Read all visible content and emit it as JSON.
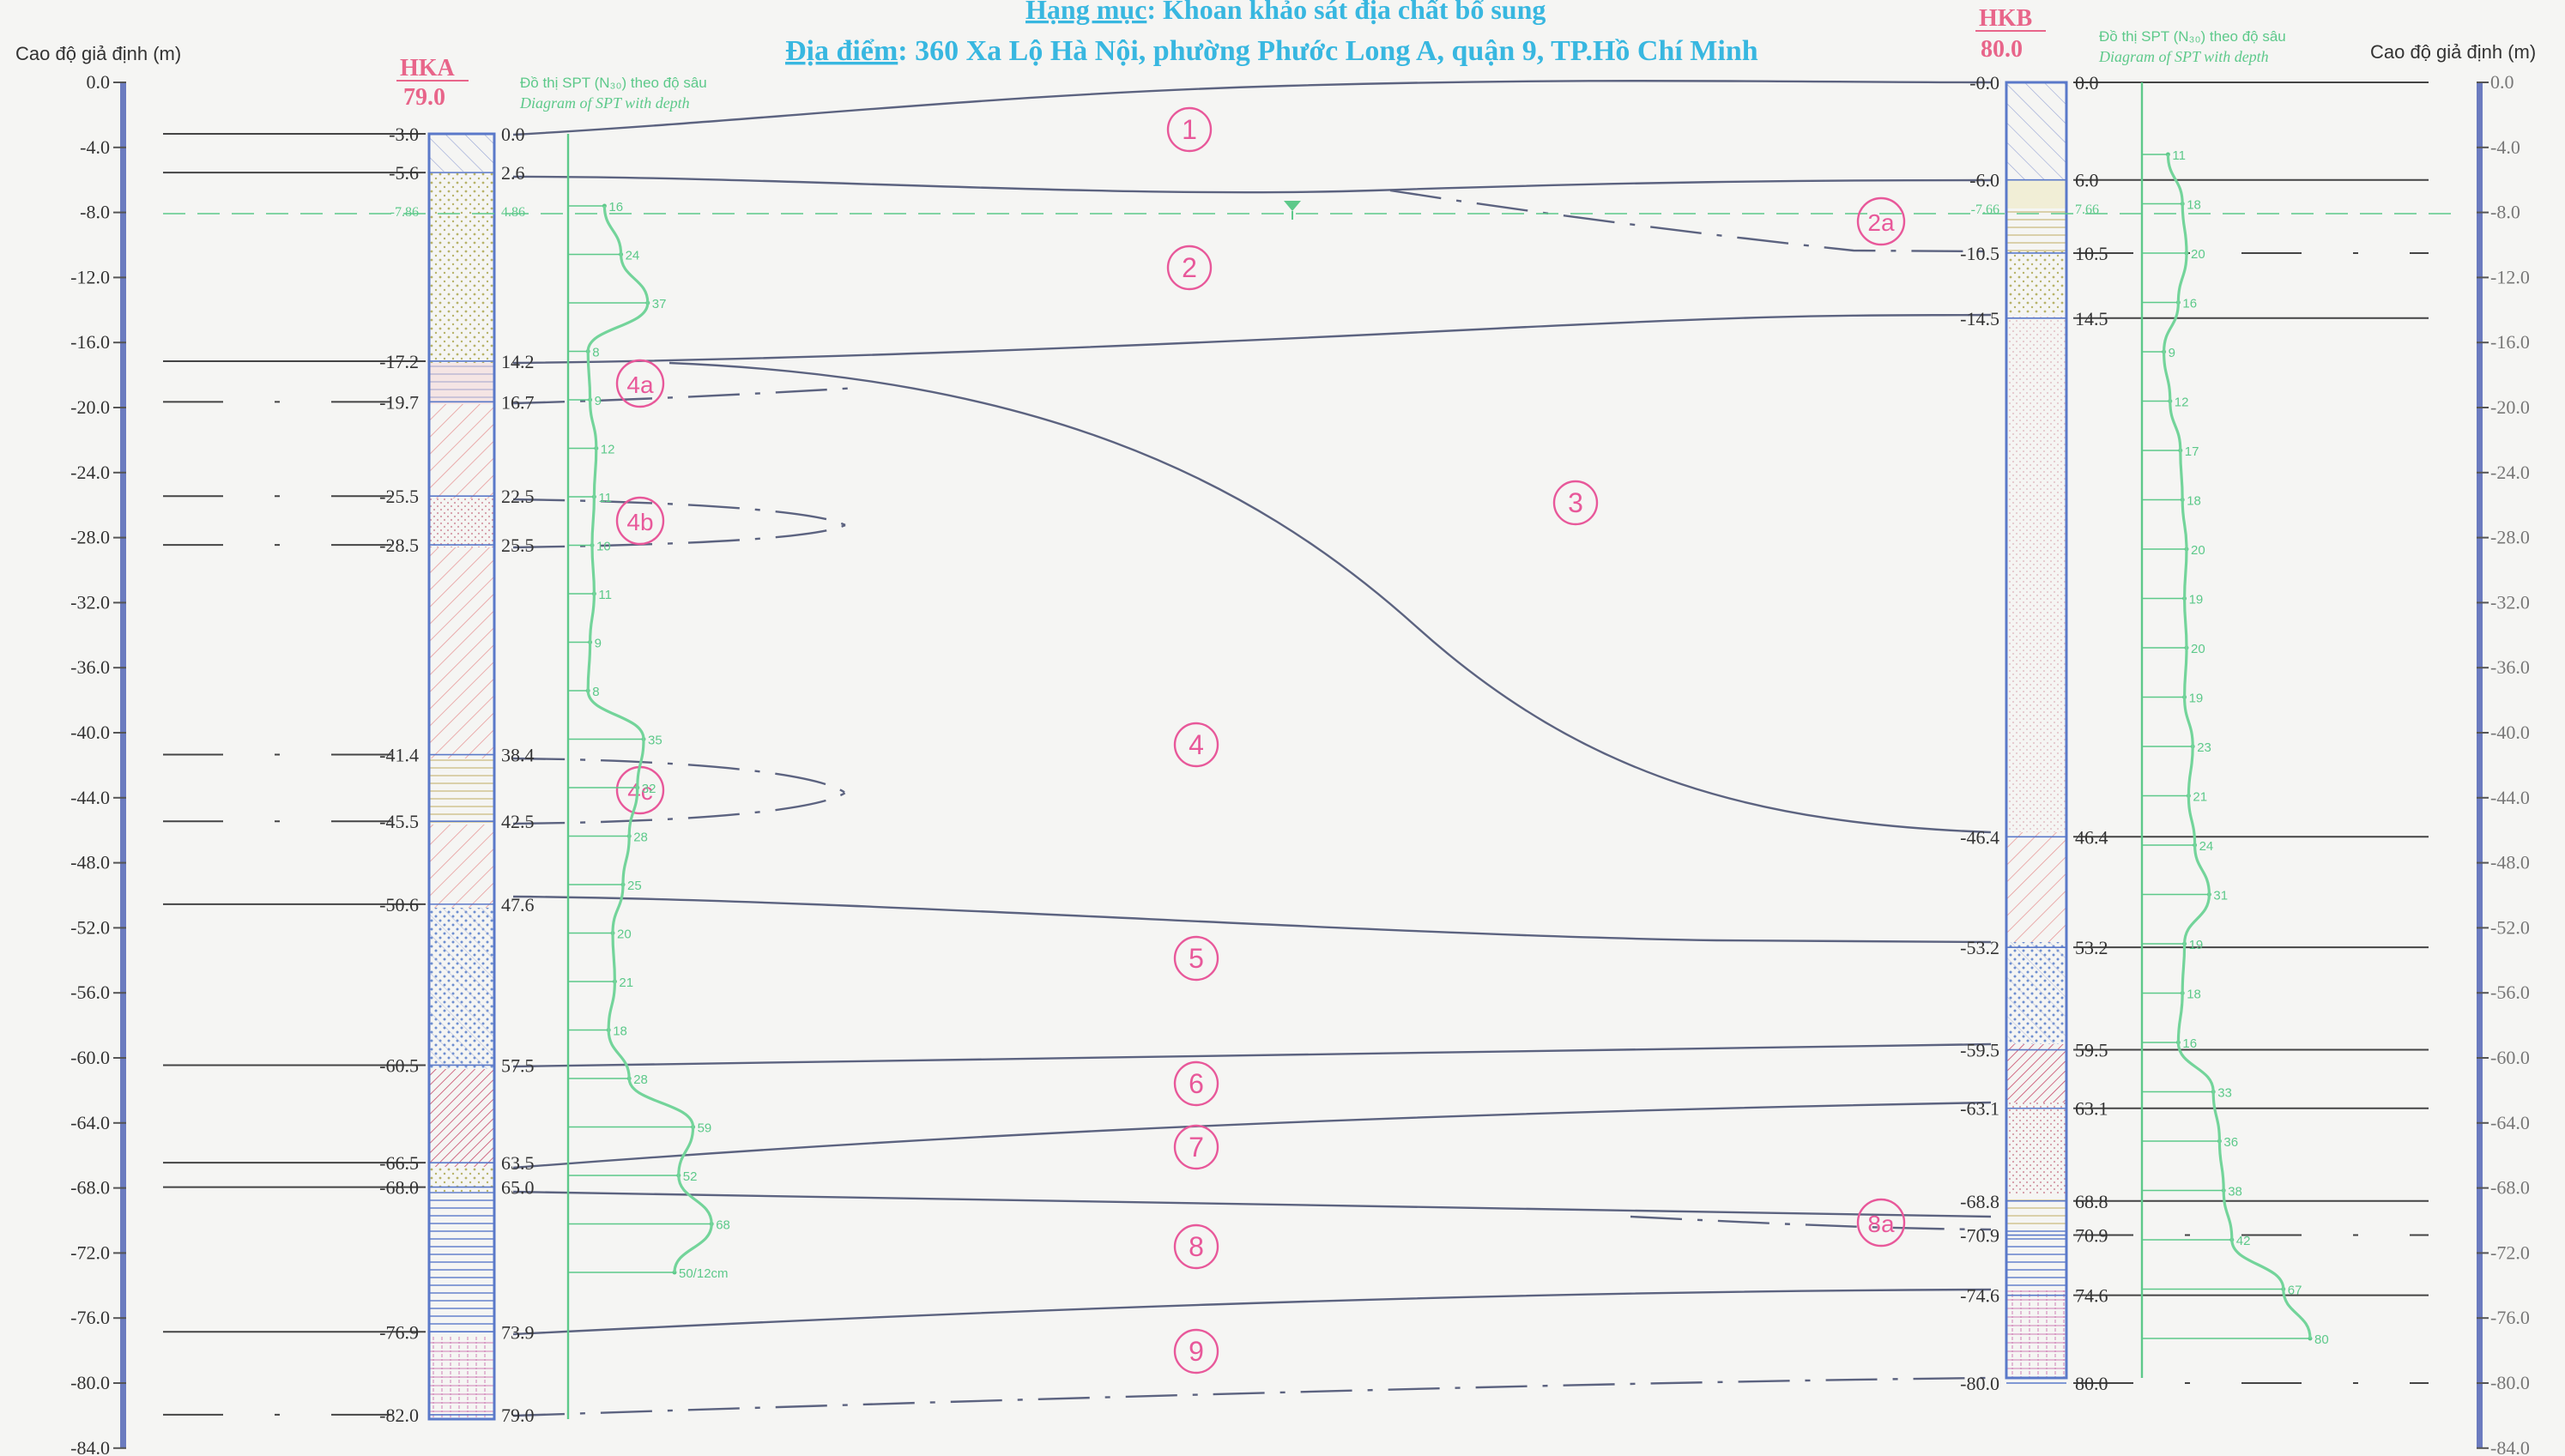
{
  "header": {
    "line1_label": "Hạng mục",
    "line1_value": ": Khoan khảo sát địa chất bổ sung",
    "line2_label": "Địa điểm",
    "line2_value": ": 360 Xa Lộ Hà Nội, phường Phước Long A, quận 9, TP.Hồ Chí Minh"
  },
  "axis": {
    "label_left": "Cao độ giả định (m)",
    "label_right": "Cao độ giả định (m)",
    "ticks": [
      "0.0",
      "-4.0",
      "-8.0",
      "-12.0",
      "-16.0",
      "-20.0",
      "-24.0",
      "-28.0",
      "-32.0",
      "-36.0",
      "-40.0",
      "-44.0",
      "-48.0",
      "-52.0",
      "-56.0",
      "-60.0",
      "-64.0",
      "-68.0",
      "-72.0",
      "-76.0",
      "-80.0",
      "-84.0"
    ]
  },
  "boreholes": {
    "left": {
      "name": "HKA",
      "ground": "79.0",
      "spt_title": "Đồ thị SPT (N₃₀) theo độ sâu",
      "spt_subtitle": "Diagram of SPT with depth",
      "layers": [
        {
          "elev": "-3.0",
          "depth": "0.0"
        },
        {
          "elev": "-5.6",
          "depth": "2.6"
        },
        {
          "elev": "-7.86",
          "depth": "4.86"
        },
        {
          "elev": "-17.2",
          "depth": "14.2"
        },
        {
          "elev": "-19.7",
          "depth": "16.7"
        },
        {
          "elev": "-25.5",
          "depth": "22.5"
        },
        {
          "elev": "-28.5",
          "depth": "25.5"
        },
        {
          "elev": "-41.4",
          "depth": "38.4"
        },
        {
          "elev": "-45.5",
          "depth": "42.5"
        },
        {
          "elev": "-50.6",
          "depth": "47.6"
        },
        {
          "elev": "-60.5",
          "depth": "57.5"
        },
        {
          "elev": "-66.5",
          "depth": "63.5"
        },
        {
          "elev": "-68.0",
          "depth": "65.0"
        },
        {
          "elev": "-76.9",
          "depth": "73.9"
        },
        {
          "elev": "-82.0",
          "depth": "79.0"
        }
      ],
      "spt": [
        "16",
        "24",
        "37",
        "8",
        "9",
        "12",
        "11",
        "10",
        "11",
        "9",
        "8",
        "35",
        "32",
        "28",
        "25",
        "20",
        "21",
        "18",
        "28",
        "59",
        "52",
        "68",
        "50/12cm"
      ]
    },
    "right": {
      "name": "HKB",
      "ground": "80.0",
      "spt_title": "Đồ thị SPT (N₃₀) theo độ sâu",
      "spt_subtitle": "Diagram of SPT with depth",
      "layers": [
        {
          "elev": "-0.0",
          "depth": "0.0"
        },
        {
          "elev": "-6.0",
          "depth": "6.0"
        },
        {
          "elev": "-7.66",
          "depth": "7.66"
        },
        {
          "elev": "-10.5",
          "depth": "10.5"
        },
        {
          "elev": "-14.5",
          "depth": "14.5"
        },
        {
          "elev": "-46.4",
          "depth": "46.4"
        },
        {
          "elev": "-53.2",
          "depth": "53.2"
        },
        {
          "elev": "-59.5",
          "depth": "59.5"
        },
        {
          "elev": "-63.1",
          "depth": "63.1"
        },
        {
          "elev": "-68.8",
          "depth": "68.8"
        },
        {
          "elev": "-70.9",
          "depth": "70.9"
        },
        {
          "elev": "-74.6",
          "depth": "74.6"
        },
        {
          "elev": "-80.0",
          "depth": "80.0"
        }
      ],
      "spt": [
        "11",
        "18",
        "20",
        "16",
        "9",
        "12",
        "17",
        "18",
        "20",
        "19",
        "20",
        "19",
        "23",
        "21",
        "24",
        "31",
        "19",
        "18",
        "16",
        "33",
        "36",
        "38",
        "42",
        "67",
        "80"
      ]
    }
  },
  "layer_labels": [
    "1",
    "2",
    "2a",
    "3",
    "4",
    "4a",
    "4b",
    "4c",
    "5",
    "6",
    "7",
    "8",
    "8a",
    "9"
  ]
}
